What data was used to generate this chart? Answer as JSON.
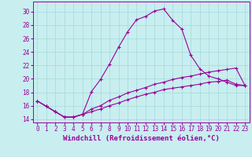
{
  "xlabel": "Windchill (Refroidissement éolien,°C)",
  "background_color": "#c8eef0",
  "grid_color": "#aadddd",
  "line_color": "#990099",
  "xlim": [
    -0.5,
    23.5
  ],
  "ylim": [
    13.5,
    31.5
  ],
  "xticks": [
    0,
    1,
    2,
    3,
    4,
    5,
    6,
    7,
    8,
    9,
    10,
    11,
    12,
    13,
    14,
    15,
    16,
    17,
    18,
    19,
    20,
    21,
    22,
    23
  ],
  "yticks": [
    14,
    16,
    18,
    20,
    22,
    24,
    26,
    28,
    30
  ],
  "line1_x": [
    0,
    1,
    2,
    3,
    4,
    5,
    6,
    7,
    8,
    9,
    10,
    11,
    12,
    13,
    14,
    15,
    16,
    17,
    18,
    19,
    20,
    21,
    22,
    23
  ],
  "line1_y": [
    16.7,
    15.9,
    15.1,
    14.3,
    14.3,
    14.7,
    18.1,
    19.9,
    22.2,
    24.7,
    27.0,
    28.8,
    29.3,
    30.1,
    30.4,
    28.7,
    27.4,
    23.5,
    21.5,
    20.4,
    20.0,
    19.5,
    19.0,
    19.0
  ],
  "line2_x": [
    0,
    1,
    2,
    3,
    4,
    5,
    6,
    7,
    8,
    9,
    10,
    11,
    12,
    13,
    14,
    15,
    16,
    17,
    18,
    19,
    20,
    21,
    22,
    23
  ],
  "line2_y": [
    16.7,
    15.9,
    15.1,
    14.3,
    14.3,
    14.7,
    15.5,
    16.0,
    16.8,
    17.3,
    17.9,
    18.3,
    18.7,
    19.2,
    19.5,
    19.9,
    20.2,
    20.4,
    20.7,
    21.0,
    21.2,
    21.4,
    21.6,
    19.0
  ],
  "line3_x": [
    0,
    1,
    2,
    3,
    4,
    5,
    6,
    7,
    8,
    9,
    10,
    11,
    12,
    13,
    14,
    15,
    16,
    17,
    18,
    19,
    20,
    21,
    22,
    23
  ],
  "line3_y": [
    16.7,
    15.9,
    15.1,
    14.3,
    14.3,
    14.7,
    15.1,
    15.5,
    16.0,
    16.4,
    16.9,
    17.3,
    17.7,
    18.0,
    18.4,
    18.6,
    18.8,
    19.0,
    19.2,
    19.5,
    19.6,
    19.8,
    19.2,
    19.0
  ],
  "marker": "+",
  "markersize": 3,
  "linewidth": 0.8,
  "xlabel_fontsize": 6.5,
  "tick_fontsize": 5.5
}
